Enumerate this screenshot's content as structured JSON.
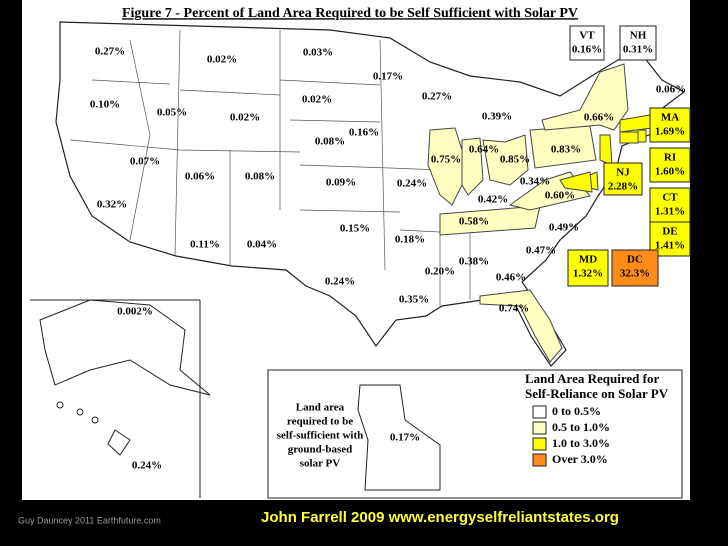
{
  "header": {
    "title": "Figure 7 - Percent of Land Area Required to be Self Sufficient with Solar PV"
  },
  "states": [
    {
      "label": "0.27%",
      "color": "#ffffff"
    },
    {
      "label": "0.10%",
      "color": "#ffffff"
    },
    {
      "label": "0.32%",
      "color": "#ffffff"
    },
    {
      "label": "0.05%",
      "color": "#ffffff"
    },
    {
      "label": "0.07%",
      "color": "#ffffff"
    },
    {
      "label": "0.02%",
      "color": "#ffffff"
    },
    {
      "label": "0.02%",
      "color": "#ffffff"
    },
    {
      "label": "0.06%",
      "color": "#ffffff"
    },
    {
      "label": "0.11%",
      "color": "#ffffff"
    },
    {
      "label": "0.08%",
      "color": "#ffffff"
    },
    {
      "label": "0.04%",
      "color": "#ffffff"
    },
    {
      "label": "0.03%",
      "color": "#ffffff"
    },
    {
      "label": "0.02%",
      "color": "#ffffff"
    },
    {
      "label": "0.08%",
      "color": "#ffffff"
    },
    {
      "label": "0.09%",
      "color": "#ffffff"
    },
    {
      "label": "0.15%",
      "color": "#ffffff"
    },
    {
      "label": "0.24%",
      "color": "#ffffff"
    },
    {
      "label": "0.17%",
      "color": "#ffffff"
    },
    {
      "label": "0.16%",
      "color": "#ffffff"
    },
    {
      "label": "0.24%",
      "color": "#ffffff"
    },
    {
      "label": "0.18%",
      "color": "#ffffff"
    },
    {
      "label": "0.35%",
      "color": "#ffffff"
    },
    {
      "label": "0.27%",
      "color": "#ffffff"
    },
    {
      "label": "0.75%",
      "color": "#ffffc2"
    },
    {
      "label": "0.39%",
      "color": "#ffffff"
    },
    {
      "label": "0.64%",
      "color": "#ffffc2"
    },
    {
      "label": "0.85%",
      "color": "#ffffc2"
    },
    {
      "label": "0.42%",
      "color": "#ffffff"
    },
    {
      "label": "0.58%",
      "color": "#ffffc2"
    },
    {
      "label": "0.20%",
      "color": "#ffffff"
    },
    {
      "label": "0.38%",
      "color": "#ffffff"
    },
    {
      "label": "0.46%",
      "color": "#ffffff"
    },
    {
      "label": "0.74%",
      "color": "#ffffc2"
    },
    {
      "label": "0.47%",
      "color": "#ffffff"
    },
    {
      "label": "0.49%",
      "color": "#ffffff"
    },
    {
      "label": "0.60%",
      "color": "#ffffc2"
    },
    {
      "label": "0.34%",
      "color": "#ffffff"
    },
    {
      "label": "0.83%",
      "color": "#ffffc2"
    },
    {
      "label": "0.66%",
      "color": "#ffffc2"
    },
    {
      "label": "0.06%",
      "color": "#ffffff"
    },
    {
      "label": "0.002%",
      "color": "#ffffff"
    },
    {
      "label": "0.24%",
      "color": "#ffffff"
    }
  ],
  "boxed": [
    {
      "abbr": "VT",
      "label": "0.16%",
      "color": "#ffffff"
    },
    {
      "abbr": "NH",
      "label": "0.31%",
      "color": "#ffffff"
    },
    {
      "abbr": "MA",
      "label": "1.69%",
      "color": "#ffff00"
    },
    {
      "abbr": "RI",
      "label": "1.60%",
      "color": "#ffff00"
    },
    {
      "abbr": "CT",
      "label": "1.31%",
      "color": "#ffff00"
    },
    {
      "abbr": "DE",
      "label": "1.41%",
      "color": "#ffff00"
    },
    {
      "abbr": "NJ",
      "label": "2.28%",
      "color": "#ffff00"
    },
    {
      "abbr": "MD",
      "label": "1.32%",
      "color": "#ffff00"
    },
    {
      "abbr": "DC",
      "label": "32.3%",
      "color": "#ff8c1a"
    }
  ],
  "inset": {
    "text": [
      "Land area",
      "required to be",
      "self-sufficient with",
      "ground-based",
      "solar PV"
    ],
    "value": "0.17%"
  },
  "legend": {
    "title": [
      "Land Area Required for",
      "Self-Reliance on Solar PV"
    ],
    "items": [
      {
        "label": "0 to 0.5%",
        "color": "#ffffff"
      },
      {
        "label": "0.5 to 1.0%",
        "color": "#ffffc2"
      },
      {
        "label": "1.0 to 3.0%",
        "color": "#ffff00"
      },
      {
        "label": "Over 3.0%",
        "color": "#ff8c1a"
      }
    ]
  },
  "footer": {
    "left": "Guy Dauncey 2011 Earthfuture.com",
    "right": "John Farrell 2009 www.energyselfreliantstates.org"
  }
}
